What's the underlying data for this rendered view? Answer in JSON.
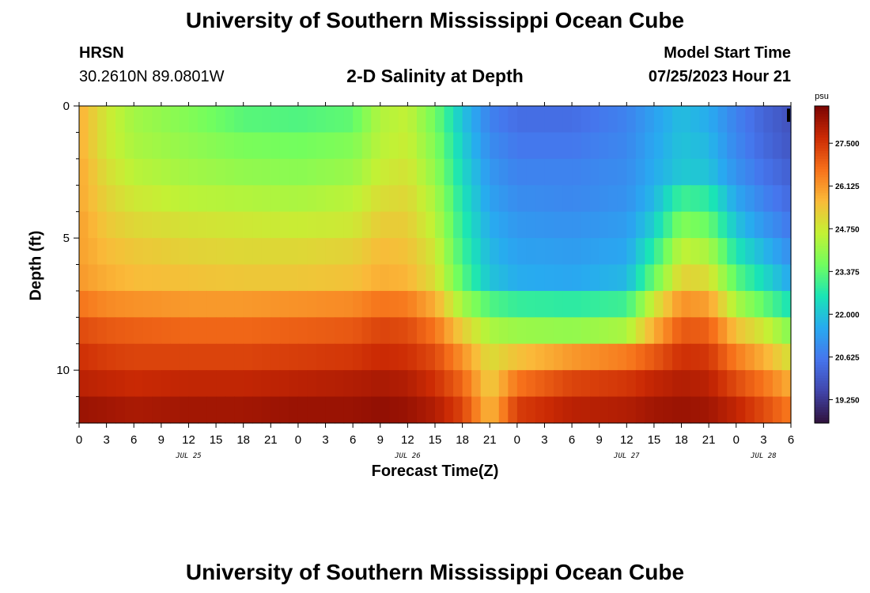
{
  "header": {
    "title": "University of Southern Mississippi Ocean Cube",
    "station": "HRSN",
    "coordinates": "30.2610N  89.0801W",
    "plot_title": "2-D Salinity at Depth",
    "model_start_label": "Model Start Time",
    "model_start_value": "07/25/2023 Hour 21"
  },
  "footer": {
    "title": "University of Southern Mississippi Ocean Cube"
  },
  "chart_data": {
    "type": "heatmap",
    "title": "2-D Salinity at Depth",
    "xlabel": "Forecast Time(Z)",
    "ylabel": "Depth (ft)",
    "x_tick_labels": [
      "0",
      "3",
      "6",
      "9",
      "12",
      "15",
      "18",
      "21",
      "0",
      "3",
      "6",
      "9",
      "12",
      "15",
      "18",
      "21",
      "0",
      "3",
      "6",
      "9",
      "12",
      "15",
      "18",
      "21",
      "0",
      "3",
      "6"
    ],
    "x_range_hours": [
      0,
      78
    ],
    "date_labels": [
      {
        "label": "JUL 25",
        "hour": 12
      },
      {
        "label": "JUL 26",
        "hour": 36
      },
      {
        "label": "JUL 27",
        "hour": 60
      },
      {
        "label": "JUL 28",
        "hour": 75
      }
    ],
    "y_tick_labels": [
      "0",
      "5",
      "10"
    ],
    "y_range_ft": [
      0,
      12
    ],
    "colorbar": {
      "unit": "psu",
      "range": [
        18.5,
        28.7
      ],
      "tick_labels": [
        "27.500",
        "26.125",
        "24.750",
        "23.375",
        "22.000",
        "20.625",
        "19.250"
      ],
      "tick_values": [
        27.5,
        26.125,
        24.75,
        23.375,
        22.0,
        20.625,
        19.25
      ]
    },
    "depth_layers_ft": [
      0.5,
      1.5,
      2.5,
      3.5,
      4.5,
      5.5,
      6.5,
      7.5,
      8.5,
      9.5,
      10.5,
      11.5
    ],
    "keyframe_hours": [
      0,
      3,
      6,
      12,
      18,
      24,
      30,
      33,
      36,
      39,
      42,
      45,
      48,
      54,
      60,
      63,
      66,
      69,
      72,
      75,
      78
    ],
    "salinity_psu": [
      [
        25.8,
        24.8,
        24.2,
        23.8,
        23.3,
        23.2,
        23.4,
        24.4,
        24.6,
        23.6,
        22.0,
        20.8,
        20.4,
        20.4,
        20.8,
        21.4,
        21.9,
        21.6,
        20.8,
        20.2,
        19.8
      ],
      [
        25.8,
        24.8,
        24.3,
        24.0,
        23.7,
        23.6,
        23.8,
        24.5,
        24.7,
        23.8,
        22.2,
        21.0,
        20.6,
        20.6,
        20.9,
        21.5,
        22.0,
        21.8,
        20.9,
        20.3,
        19.9
      ],
      [
        25.9,
        25.0,
        24.5,
        24.2,
        24.0,
        23.9,
        24.1,
        24.7,
        24.9,
        24.0,
        22.4,
        21.2,
        20.8,
        20.8,
        21.0,
        21.6,
        22.1,
        22.0,
        21.1,
        20.5,
        20.1
      ],
      [
        25.9,
        25.2,
        24.8,
        24.5,
        24.4,
        24.3,
        24.5,
        25.0,
        25.1,
        24.3,
        22.6,
        21.4,
        21.0,
        20.9,
        21.1,
        21.8,
        23.0,
        22.8,
        21.5,
        20.8,
        20.3
      ],
      [
        26.0,
        25.4,
        25.1,
        24.9,
        24.8,
        24.7,
        24.8,
        25.3,
        25.3,
        24.5,
        22.8,
        21.6,
        21.2,
        21.1,
        21.3,
        22.2,
        23.8,
        23.5,
        22.0,
        21.2,
        20.6
      ],
      [
        26.0,
        25.6,
        25.4,
        25.2,
        25.1,
        25.1,
        25.2,
        25.6,
        25.5,
        24.8,
        23.0,
        21.8,
        21.4,
        21.3,
        21.5,
        22.8,
        24.6,
        24.3,
        22.6,
        21.8,
        21.0
      ],
      [
        26.1,
        25.8,
        25.6,
        25.5,
        25.4,
        25.4,
        25.5,
        25.8,
        25.7,
        25.0,
        23.3,
        22.0,
        21.6,
        21.5,
        21.8,
        23.5,
        25.2,
        25.0,
        23.3,
        22.4,
        21.5
      ],
      [
        26.6,
        26.3,
        26.2,
        26.1,
        26.1,
        26.2,
        26.3,
        26.6,
        26.5,
        25.8,
        24.2,
        23.2,
        22.9,
        22.8,
        23.0,
        24.8,
        26.2,
        26.0,
        24.3,
        23.4,
        22.5
      ],
      [
        27.2,
        27.0,
        26.9,
        26.8,
        26.8,
        26.9,
        27.0,
        27.3,
        27.2,
        26.6,
        25.3,
        24.3,
        24.1,
        24.0,
        24.3,
        25.8,
        27.0,
        26.9,
        25.5,
        24.8,
        23.8
      ],
      [
        27.6,
        27.4,
        27.3,
        27.3,
        27.3,
        27.4,
        27.5,
        27.7,
        27.6,
        27.2,
        26.2,
        25.0,
        25.5,
        26.1,
        26.5,
        27.0,
        27.6,
        27.5,
        26.5,
        25.8,
        24.9
      ],
      [
        27.9,
        27.8,
        27.7,
        27.8,
        27.8,
        27.9,
        28.0,
        28.1,
        28.0,
        27.6,
        26.8,
        25.3,
        26.6,
        27.3,
        27.5,
        27.8,
        28.0,
        27.9,
        27.2,
        26.6,
        25.8
      ],
      [
        28.3,
        28.2,
        28.1,
        28.2,
        28.2,
        28.3,
        28.3,
        28.4,
        28.3,
        28.0,
        27.3,
        25.6,
        27.4,
        27.9,
        28.0,
        28.2,
        28.3,
        28.2,
        27.8,
        27.2,
        26.5
      ]
    ]
  }
}
